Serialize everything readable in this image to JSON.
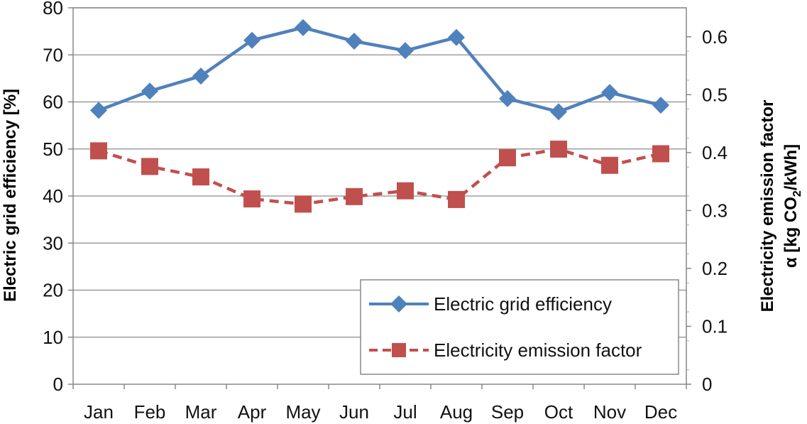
{
  "chart_data": {
    "type": "line",
    "categories": [
      "Jan",
      "Feb",
      "Mar",
      "Apr",
      "May",
      "Jun",
      "Jul",
      "Aug",
      "Sep",
      "Oct",
      "Nov",
      "Dec"
    ],
    "series": [
      {
        "name": "Electric grid efficiency",
        "axis": "left",
        "values": [
          58.2,
          62.3,
          65.5,
          73.1,
          75.8,
          72.9,
          70.9,
          73.7,
          60.7,
          57.9,
          62.0,
          59.3
        ],
        "color": "#4F81BD",
        "line_style": "solid",
        "marker": "diamond"
      },
      {
        "name": "Electricity emission factor",
        "axis": "right",
        "values": [
          0.403,
          0.376,
          0.358,
          0.32,
          0.311,
          0.324,
          0.334,
          0.319,
          0.391,
          0.406,
          0.378,
          0.398
        ],
        "color": "#C0504D",
        "line_style": "dashed",
        "marker": "square"
      }
    ],
    "ylabel": "Electric grid efficiency [%]",
    "y2label_line1": "Electricity emission factor",
    "y2label_line2_prefix": "α [kg CO",
    "y2label_subscript": "2",
    "y2label_line2_suffix": "/kWh]",
    "ylim": [
      0,
      80
    ],
    "y2lim": [
      0,
      0.65
    ],
    "yticks": [
      "0",
      "10",
      "20",
      "30",
      "40",
      "50",
      "60",
      "70",
      "80"
    ],
    "y2ticks": [
      "0",
      "0.1",
      "0.2",
      "0.3",
      "0.4",
      "0.5",
      "0.6"
    ],
    "grid": true,
    "legend_position": "bottom-right"
  }
}
